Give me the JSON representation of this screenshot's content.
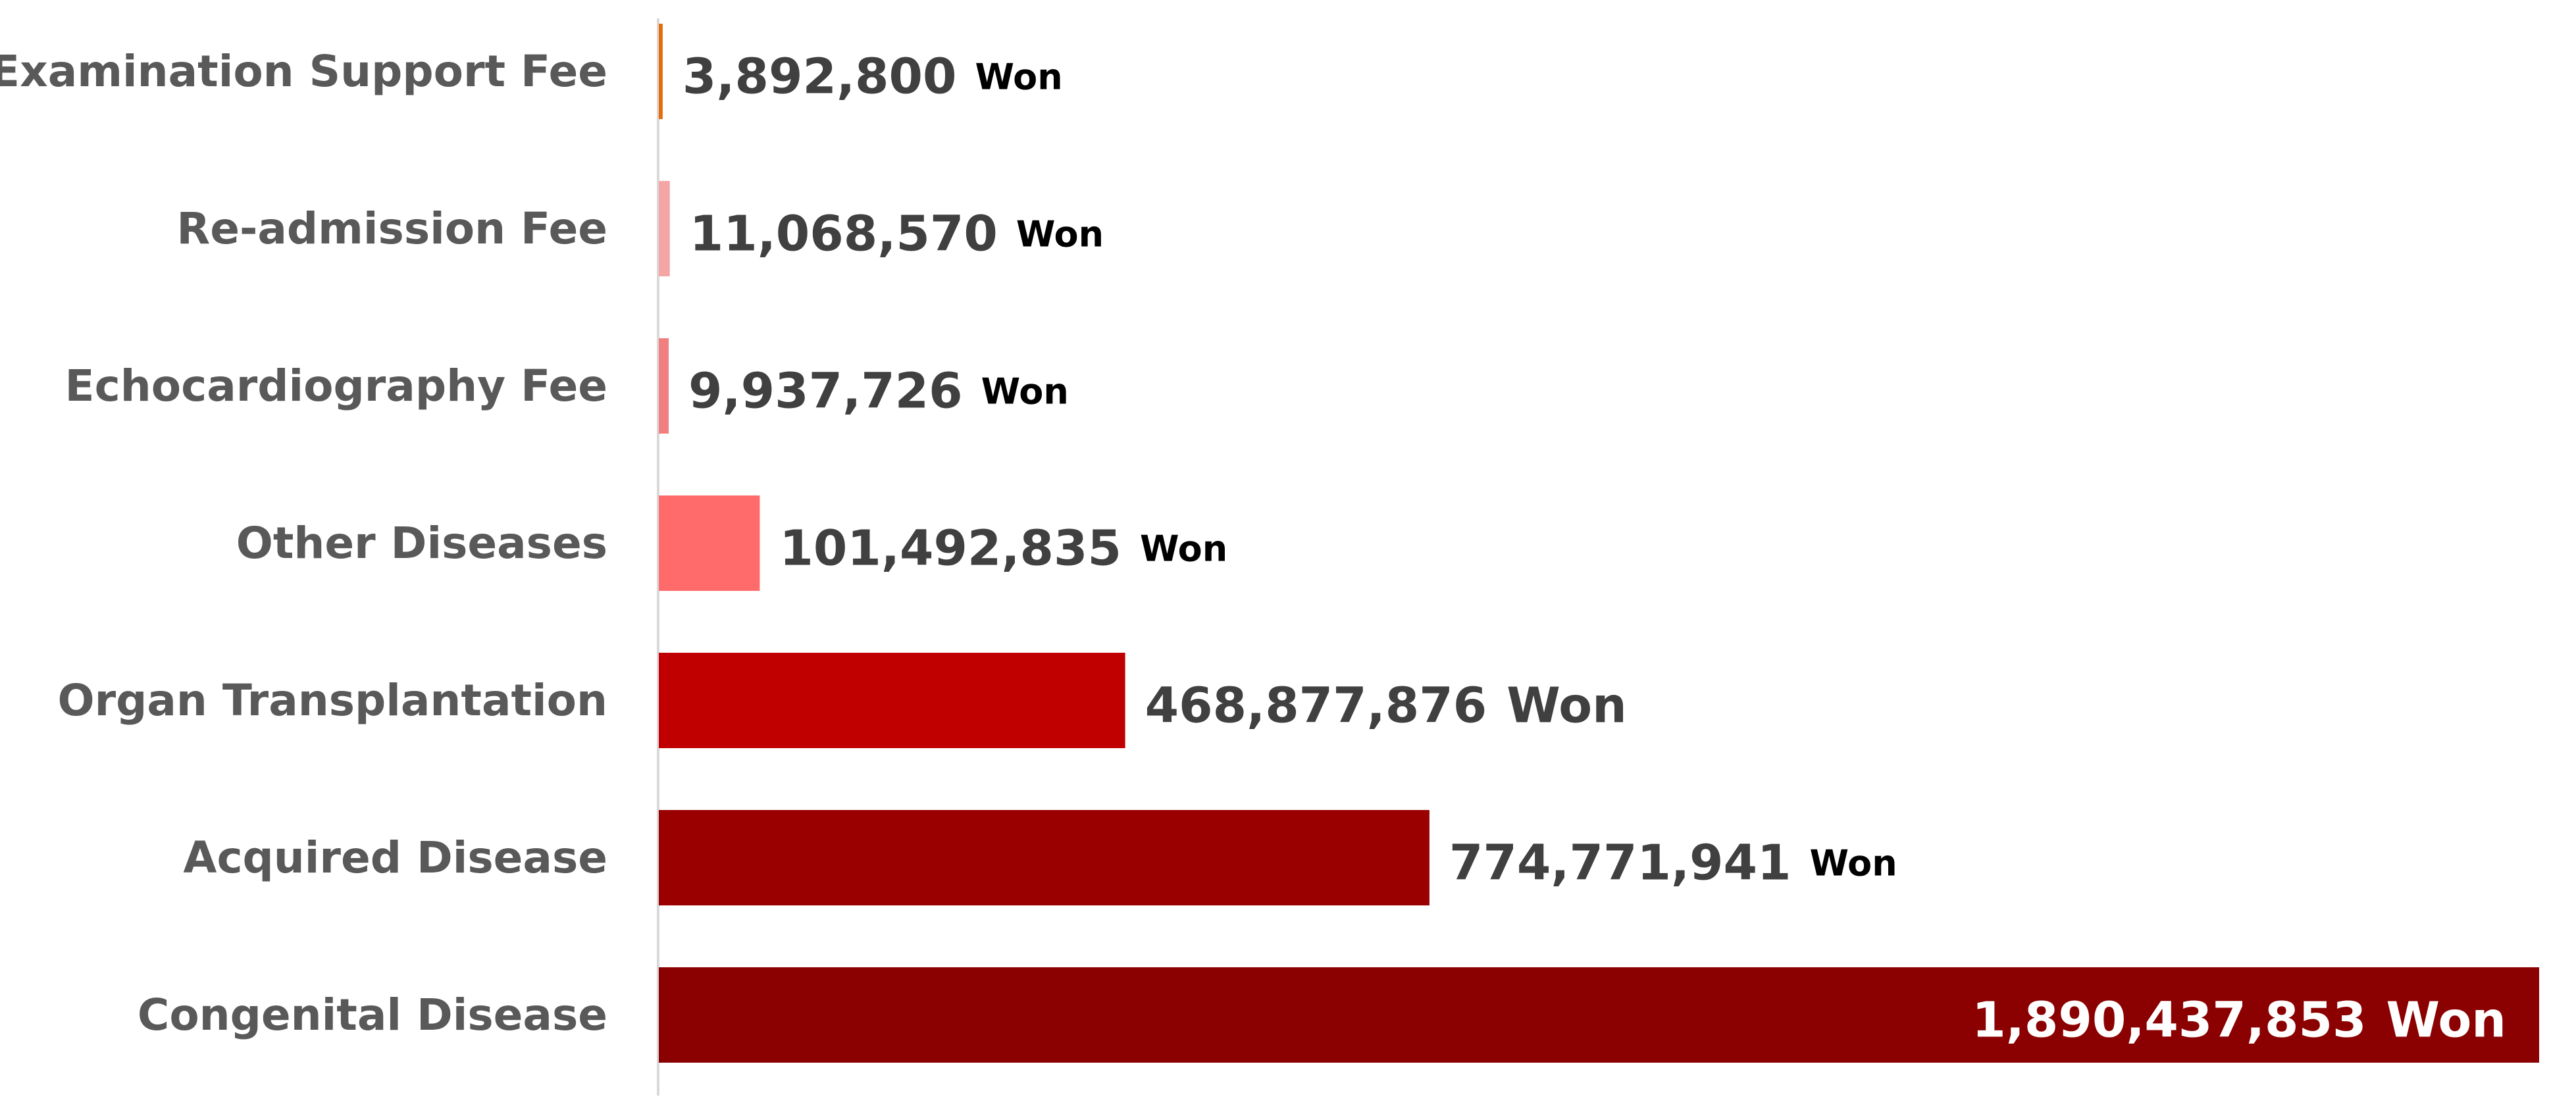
{
  "chart_data": {
    "type": "bar",
    "orientation": "horizontal",
    "categories": [
      "Examination Support Fee",
      "Re-admission Fee",
      "Echocardiography Fee",
      "Other Diseases",
      "Organ Transplantation",
      "Acquired Disease",
      "Congenital Disease"
    ],
    "values": [
      3892800,
      11068570,
      9937726,
      101492835,
      468877876,
      774771941,
      1890437853
    ],
    "value_labels": [
      "3,892,800",
      "11,068,570",
      "9,937,726",
      "101,492,835",
      "468,877,876",
      "774,771,941",
      "1,890,437,853"
    ],
    "unit": "Won",
    "colors": [
      "#e46c0a",
      "#f4a6a6",
      "#f08080",
      "#ff6b6b",
      "#c00000",
      "#9b0000",
      "#8b0000"
    ],
    "xlim": [
      0,
      1890437853
    ],
    "grid": false,
    "legend": "none"
  }
}
